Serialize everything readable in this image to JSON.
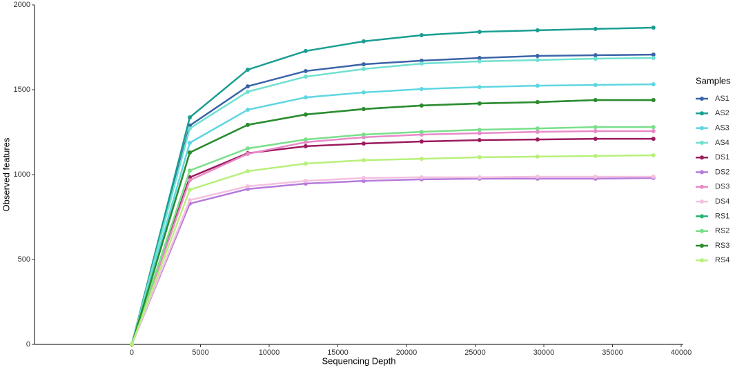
{
  "chart_data": {
    "type": "line",
    "xlabel": "Sequencing Depth",
    "ylabel": "Observed features",
    "legend_title": "Samples",
    "legend": "right",
    "x": [
      0,
      4220,
      8440,
      12660,
      16880,
      21100,
      25320,
      29540,
      33760,
      37980
    ],
    "xlim": [
      -7085,
      40151
    ],
    "xticks": [
      0,
      5000,
      10000,
      15000,
      20000,
      25000,
      30000,
      35000,
      40000
    ],
    "ylim": [
      0,
      2000
    ],
    "yticks": [
      0,
      500,
      1000,
      1500,
      2000
    ],
    "grid": false,
    "series": [
      {
        "name": "AS1",
        "color": "#3b63a8",
        "values": [
          0,
          1289,
          1520,
          1610,
          1650,
          1671,
          1687,
          1699,
          1703,
          1707
        ]
      },
      {
        "name": "AS2",
        "color": "#1a9e92",
        "values": [
          0,
          1337,
          1618,
          1728,
          1785,
          1821,
          1841,
          1850,
          1858,
          1866
        ]
      },
      {
        "name": "AS3",
        "color": "#5fd6e2",
        "values": [
          0,
          1187,
          1382,
          1455,
          1484,
          1504,
          1516,
          1524,
          1528,
          1532
        ]
      },
      {
        "name": "AS4",
        "color": "#70e0cf",
        "values": [
          0,
          1272,
          1488,
          1577,
          1622,
          1654,
          1667,
          1675,
          1683,
          1687
        ]
      },
      {
        "name": "DS1",
        "color": "#9b1b5e",
        "values": [
          0,
          984,
          1126,
          1167,
          1183,
          1195,
          1203,
          1207,
          1211,
          1211
        ]
      },
      {
        "name": "DS2",
        "color": "#b57bdc",
        "values": [
          0,
          829,
          915,
          947,
          963,
          972,
          976,
          976,
          976,
          980
        ]
      },
      {
        "name": "DS3",
        "color": "#e88ac8",
        "values": [
          0,
          967,
          1122,
          1191,
          1220,
          1236,
          1244,
          1252,
          1256,
          1256
        ]
      },
      {
        "name": "DS4",
        "color": "#f4c0e0",
        "values": [
          0,
          850,
          931,
          963,
          980,
          984,
          984,
          988,
          988,
          988
        ]
      },
      {
        "name": "RS1",
        "color": "#22b573",
        "values": [
          0,
          1130,
          1293,
          1354,
          1386,
          1407,
          1419,
          1427,
          1439,
          1439
        ]
      },
      {
        "name": "RS2",
        "color": "#78e08a",
        "values": [
          0,
          1024,
          1154,
          1207,
          1236,
          1252,
          1264,
          1272,
          1280,
          1280
        ]
      },
      {
        "name": "RS3",
        "color": "#2e8b2e",
        "values": [
          0,
          1130,
          1293,
          1354,
          1386,
          1407,
          1419,
          1427,
          1439,
          1439
        ]
      },
      {
        "name": "RS4",
        "color": "#b8f07a",
        "values": [
          0,
          911,
          1020,
          1065,
          1085,
          1093,
          1102,
          1106,
          1110,
          1114
        ]
      }
    ]
  }
}
